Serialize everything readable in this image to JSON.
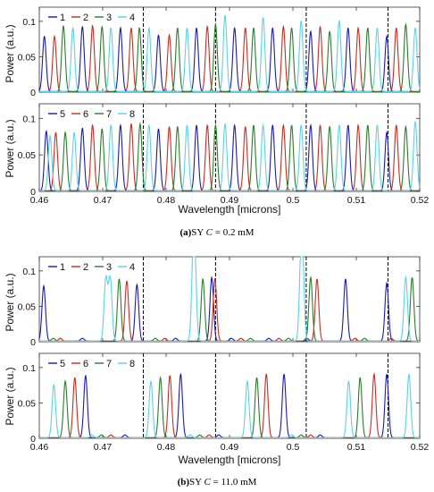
{
  "xlabel": "Wavelength [microns]",
  "ylabel": "Power (a.u.)",
  "captions": [
    {
      "tag": "(a)",
      "prefix": "SY ",
      "var": "C",
      "rest": " = 0.2 mM"
    },
    {
      "tag": "(b)",
      "prefix": "SY ",
      "var": "C",
      "rest": " = 11.0 mM"
    }
  ],
  "colors": {
    "1": "#1a1ab3",
    "2": "#cc2b1f",
    "3": "#2a7d2a",
    "4": "#5ad2e8",
    "5": "#1a1ab3",
    "6": "#cc2b1f",
    "7": "#2a7d2a",
    "8": "#5ad2e8"
  },
  "chart_data": [
    {
      "type": "line",
      "figure": "(a)",
      "panel": "top",
      "xlim": [
        0.46,
        0.52
      ],
      "ylim": [
        0,
        0.12
      ],
      "yticks": [
        0,
        0.05,
        0.1
      ],
      "ytick_labels": [
        "0",
        "0.05",
        "0.1"
      ],
      "xticks": [
        0.46,
        0.47,
        0.48,
        0.49,
        0.5,
        0.51,
        0.52
      ],
      "xtick_labels": [
        "0.46",
        "0.47",
        "0.48",
        "0.49",
        "0.5",
        "0.51",
        "0.52"
      ],
      "show_xtick_labels": false,
      "dashed_x": [
        0.4764,
        0.4878,
        0.5021,
        0.515
      ],
      "legend": [
        "1",
        "2",
        "3",
        "4"
      ],
      "series": [
        {
          "name": "1",
          "peaks": [
            [
              0.4608,
              0.078
            ],
            [
              0.4668,
              0.092
            ],
            [
              0.4728,
              0.09
            ],
            [
              0.4788,
              0.08
            ],
            [
              0.4848,
              0.09
            ],
            [
              0.4908,
              0.09
            ],
            [
              0.4968,
              0.09
            ],
            [
              0.5028,
              0.085
            ],
            [
              0.5087,
              0.09
            ],
            [
              0.5148,
              0.078
            ]
          ]
        },
        {
          "name": "2",
          "peaks": [
            [
              0.4624,
              0.078
            ],
            [
              0.4684,
              0.093
            ],
            [
              0.4745,
              0.09
            ],
            [
              0.4805,
              0.08
            ],
            [
              0.4865,
              0.092
            ],
            [
              0.4925,
              0.09
            ],
            [
              0.4985,
              0.092
            ],
            [
              0.5043,
              0.092
            ],
            [
              0.5103,
              0.09
            ],
            [
              0.5163,
              0.09
            ]
          ]
        },
        {
          "name": "3",
          "peaks": [
            [
              0.4638,
              0.093
            ],
            [
              0.4699,
              0.092
            ],
            [
              0.4758,
              0.09
            ],
            [
              0.4818,
              0.09
            ],
            [
              0.4878,
              0.095
            ],
            [
              0.4938,
              0.09
            ],
            [
              0.4998,
              0.09
            ],
            [
              0.5058,
              0.085
            ],
            [
              0.5118,
              0.09
            ],
            [
              0.5178,
              0.095
            ]
          ]
        },
        {
          "name": "4",
          "peaks": [
            [
              0.4653,
              0.09
            ],
            [
              0.4713,
              0.09
            ],
            [
              0.4773,
              0.09
            ],
            [
              0.4833,
              0.09
            ],
            [
              0.4893,
              0.108
            ],
            [
              0.4953,
              0.105
            ],
            [
              0.5013,
              0.1
            ],
            [
              0.5073,
              0.1
            ],
            [
              0.5133,
              0.09
            ],
            [
              0.5193,
              0.09
            ]
          ]
        }
      ]
    },
    {
      "type": "line",
      "figure": "(a)",
      "panel": "bottom",
      "xlim": [
        0.46,
        0.52
      ],
      "ylim": [
        0,
        0.12
      ],
      "yticks": [
        0,
        0.05,
        0.1
      ],
      "ytick_labels": [
        "0",
        "0.05",
        "0.1"
      ],
      "xticks": [
        0.46,
        0.47,
        0.48,
        0.49,
        0.5,
        0.51,
        0.52
      ],
      "xtick_labels": [
        "0.46",
        "0.47",
        "0.48",
        "0.49",
        "0.5",
        "0.51",
        "0.52"
      ],
      "show_xtick_labels": true,
      "dashed_x": [
        0.4764,
        0.4878,
        0.5021,
        0.515
      ],
      "legend": [
        "5",
        "6",
        "7",
        "8"
      ],
      "series": [
        {
          "name": "5",
          "peaks": [
            [
              0.4611,
              0.082
            ],
            [
              0.4668,
              0.086
            ],
            [
              0.4728,
              0.09
            ],
            [
              0.4788,
              0.085
            ],
            [
              0.4848,
              0.09
            ],
            [
              0.4908,
              0.09
            ],
            [
              0.4968,
              0.09
            ],
            [
              0.5028,
              0.09
            ],
            [
              0.5087,
              0.09
            ],
            [
              0.5148,
              0.08
            ]
          ]
        },
        {
          "name": "6",
          "peaks": [
            [
              0.4626,
              0.08
            ],
            [
              0.4684,
              0.09
            ],
            [
              0.4745,
              0.092
            ],
            [
              0.4805,
              0.088
            ],
            [
              0.4865,
              0.09
            ],
            [
              0.4925,
              0.088
            ],
            [
              0.4985,
              0.09
            ],
            [
              0.5043,
              0.09
            ],
            [
              0.5103,
              0.09
            ],
            [
              0.5163,
              0.09
            ]
          ]
        },
        {
          "name": "7",
          "peaks": [
            [
              0.4641,
              0.08
            ],
            [
              0.4699,
              0.085
            ],
            [
              0.4759,
              0.092
            ],
            [
              0.4818,
              0.088
            ],
            [
              0.4878,
              0.09
            ],
            [
              0.4938,
              0.09
            ],
            [
              0.4998,
              0.09
            ],
            [
              0.5058,
              0.088
            ],
            [
              0.5118,
              0.09
            ],
            [
              0.5178,
              0.088
            ]
          ]
        },
        {
          "name": "8",
          "peaks": [
            [
              0.4617,
              0.075
            ],
            [
              0.4655,
              0.08
            ],
            [
              0.4713,
              0.09
            ],
            [
              0.4773,
              0.09
            ],
            [
              0.4833,
              0.09
            ],
            [
              0.4893,
              0.092
            ],
            [
              0.4953,
              0.09
            ],
            [
              0.5013,
              0.09
            ],
            [
              0.5073,
              0.09
            ],
            [
              0.5133,
              0.09
            ],
            [
              0.5193,
              0.095
            ]
          ]
        }
      ]
    },
    {
      "type": "line",
      "figure": "(b)",
      "panel": "top",
      "xlim": [
        0.46,
        0.52
      ],
      "ylim": [
        0,
        0.12
      ],
      "yticks": [
        0,
        0.05,
        0.1
      ],
      "ytick_labels": [
        "0",
        "0.05",
        "0.1"
      ],
      "xticks": [
        0.46,
        0.47,
        0.48,
        0.49,
        0.5,
        0.51,
        0.52
      ],
      "xtick_labels": [
        "0.46",
        "0.47",
        "0.48",
        "0.49",
        "0.5",
        "0.51",
        "0.52"
      ],
      "show_xtick_labels": false,
      "dashed_x": [
        0.4764,
        0.4878,
        0.5021,
        0.515
      ],
      "legend": [
        "1",
        "2",
        "3",
        "4"
      ],
      "series": [
        {
          "name": "1",
          "peaks": [
            [
              0.4607,
              0.078
            ],
            [
              0.4668,
              0.004
            ],
            [
              0.4754,
              0.08
            ],
            [
              0.4815,
              0.004
            ],
            [
              0.4872,
              0.09
            ],
            [
              0.4903,
              0.004
            ],
            [
              0.4962,
              0.004
            ],
            [
              0.5022,
              0.004
            ],
            [
              0.5083,
              0.088
            ],
            [
              0.5148,
              0.082
            ]
          ]
        },
        {
          "name": "2",
          "peaks": [
            [
              0.4633,
              0.004
            ],
            [
              0.4738,
              0.085
            ],
            [
              0.4798,
              0.004
            ],
            [
              0.4877,
              0.088
            ],
            [
              0.4918,
              0.004
            ],
            [
              0.4978,
              0.004
            ],
            [
              0.5038,
              0.088
            ],
            [
              0.5098,
              0.004
            ],
            [
              0.5155,
              0.004
            ]
          ]
        },
        {
          "name": "3",
          "peaks": [
            [
              0.4622,
              0.004
            ],
            [
              0.4726,
              0.088
            ],
            [
              0.4783,
              0.004
            ],
            [
              0.4858,
              0.088
            ],
            [
              0.4933,
              0.004
            ],
            [
              0.4993,
              0.004
            ],
            [
              0.5028,
              0.09
            ],
            [
              0.5113,
              0.004
            ],
            [
              0.5188,
              0.09
            ]
          ]
        },
        {
          "name": "4",
          "peaks": [
            [
              0.4705,
              0.088
            ],
            [
              0.4712,
              0.088
            ],
            [
              0.4843,
              0.088
            ],
            [
              0.4845,
              0.088
            ],
            [
              0.5013,
              0.09
            ],
            [
              0.5015,
              0.09
            ],
            [
              0.5178,
              0.09
            ]
          ]
        }
      ]
    },
    {
      "type": "line",
      "figure": "(b)",
      "panel": "bottom",
      "xlim": [
        0.46,
        0.52
      ],
      "ylim": [
        0,
        0.12
      ],
      "yticks": [
        0,
        0.05,
        0.1
      ],
      "ytick_labels": [
        "0",
        "0.05",
        "0.1"
      ],
      "xticks": [
        0.46,
        0.47,
        0.48,
        0.49,
        0.5,
        0.51,
        0.52
      ],
      "xtick_labels": [
        "0.46",
        "0.47",
        "0.48",
        "0.49",
        "0.5",
        "0.51",
        "0.52"
      ],
      "show_xtick_labels": true,
      "dashed_x": [
        0.4764,
        0.4878,
        0.5021,
        0.515
      ],
      "legend": [
        "5",
        "6",
        "7",
        "8"
      ],
      "series": [
        {
          "name": "5",
          "peaks": [
            [
              0.4673,
              0.088
            ],
            [
              0.4823,
              0.09
            ],
            [
              0.4986,
              0.09
            ],
            [
              0.5148,
              0.09
            ],
            [
              0.4735,
              0.004
            ],
            [
              0.4883,
              0.004
            ],
            [
              0.5043,
              0.004
            ]
          ]
        },
        {
          "name": "6",
          "peaks": [
            [
              0.4656,
              0.085
            ],
            [
              0.4806,
              0.088
            ],
            [
              0.4958,
              0.09
            ],
            [
              0.5128,
              0.09
            ],
            [
              0.4713,
              0.004
            ],
            [
              0.4868,
              0.004
            ],
            [
              0.5028,
              0.004
            ]
          ]
        },
        {
          "name": "7",
          "peaks": [
            [
              0.4641,
              0.08
            ],
            [
              0.4791,
              0.085
            ],
            [
              0.4943,
              0.085
            ],
            [
              0.5106,
              0.085
            ],
            [
              0.4698,
              0.004
            ],
            [
              0.4853,
              0.004
            ],
            [
              0.5013,
              0.004
            ]
          ]
        },
        {
          "name": "8",
          "peaks": [
            [
              0.4623,
              0.075
            ],
            [
              0.4776,
              0.08
            ],
            [
              0.4928,
              0.08
            ],
            [
              0.5088,
              0.08
            ],
            [
              0.5183,
              0.09
            ],
            [
              0.4683,
              0.004
            ],
            [
              0.4838,
              0.004
            ],
            [
              0.4998,
              0.004
            ]
          ]
        }
      ]
    }
  ]
}
